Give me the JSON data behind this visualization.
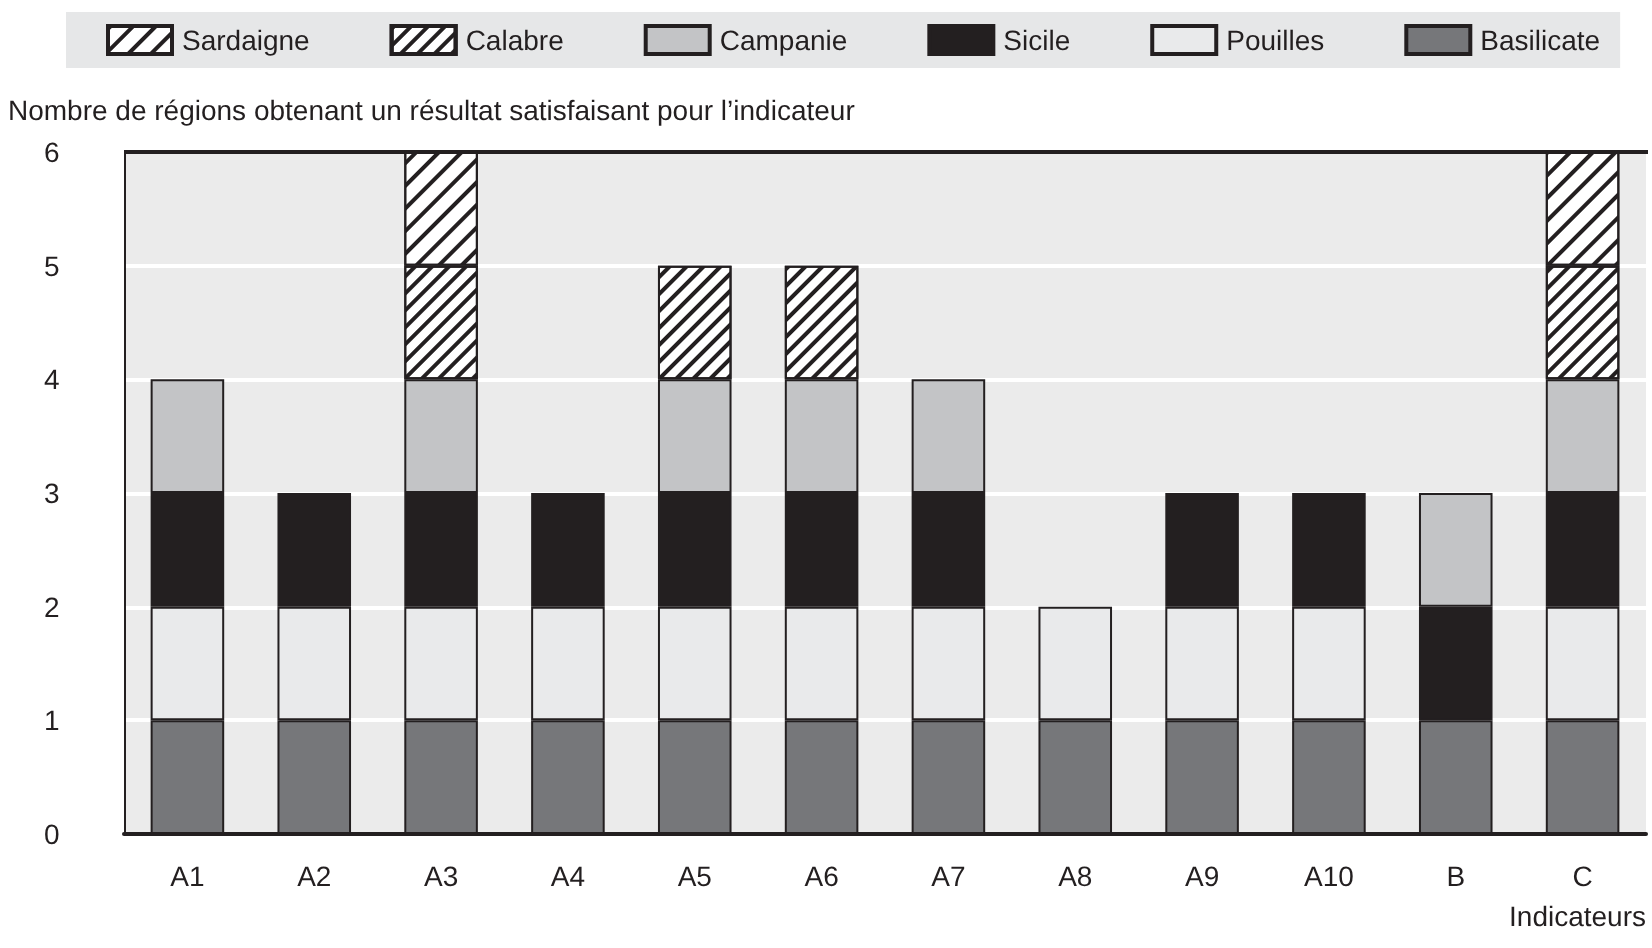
{
  "chart_data": {
    "type": "bar",
    "stacked": true,
    "ylabel": "Nombre de régions obtenant un résultat satisfaisant pour l’indicateur",
    "xlabel": "Indicateurs",
    "categories": [
      "A1",
      "A2",
      "A3",
      "A4",
      "A5",
      "A6",
      "A7",
      "A8",
      "A9",
      "A10",
      "B",
      "C"
    ],
    "series": [
      {
        "name": "Basilicate",
        "color": "#76777a",
        "values": [
          1,
          1,
          1,
          1,
          1,
          1,
          1,
          1,
          1,
          1,
          1,
          1
        ]
      },
      {
        "name": "Pouilles",
        "color": "#e9eaeb",
        "values": [
          1,
          1,
          1,
          1,
          1,
          1,
          1,
          1,
          1,
          1,
          0,
          1
        ]
      },
      {
        "name": "Sicile",
        "color": "#231f20",
        "values": [
          1,
          1,
          1,
          1,
          1,
          1,
          1,
          0,
          1,
          1,
          1,
          1
        ]
      },
      {
        "name": "Campanie",
        "color": "#c3c4c6",
        "values": [
          1,
          0,
          1,
          0,
          1,
          1,
          1,
          0,
          0,
          0,
          1,
          1
        ]
      },
      {
        "name": "Calabre",
        "color": "#ffffff",
        "values": [
          0,
          0,
          1,
          0,
          1,
          1,
          0,
          0,
          0,
          0,
          0,
          1
        ]
      },
      {
        "name": "Sardaigne",
        "color": "#ffffff",
        "values": [
          0,
          0,
          1,
          0,
          0,
          0,
          0,
          0,
          0,
          0,
          0,
          1
        ]
      }
    ],
    "ylim": [
      0,
      6
    ],
    "yticks": [
      0,
      1,
      2,
      3,
      4,
      5,
      6
    ],
    "grid": "y",
    "legend": "top"
  }
}
